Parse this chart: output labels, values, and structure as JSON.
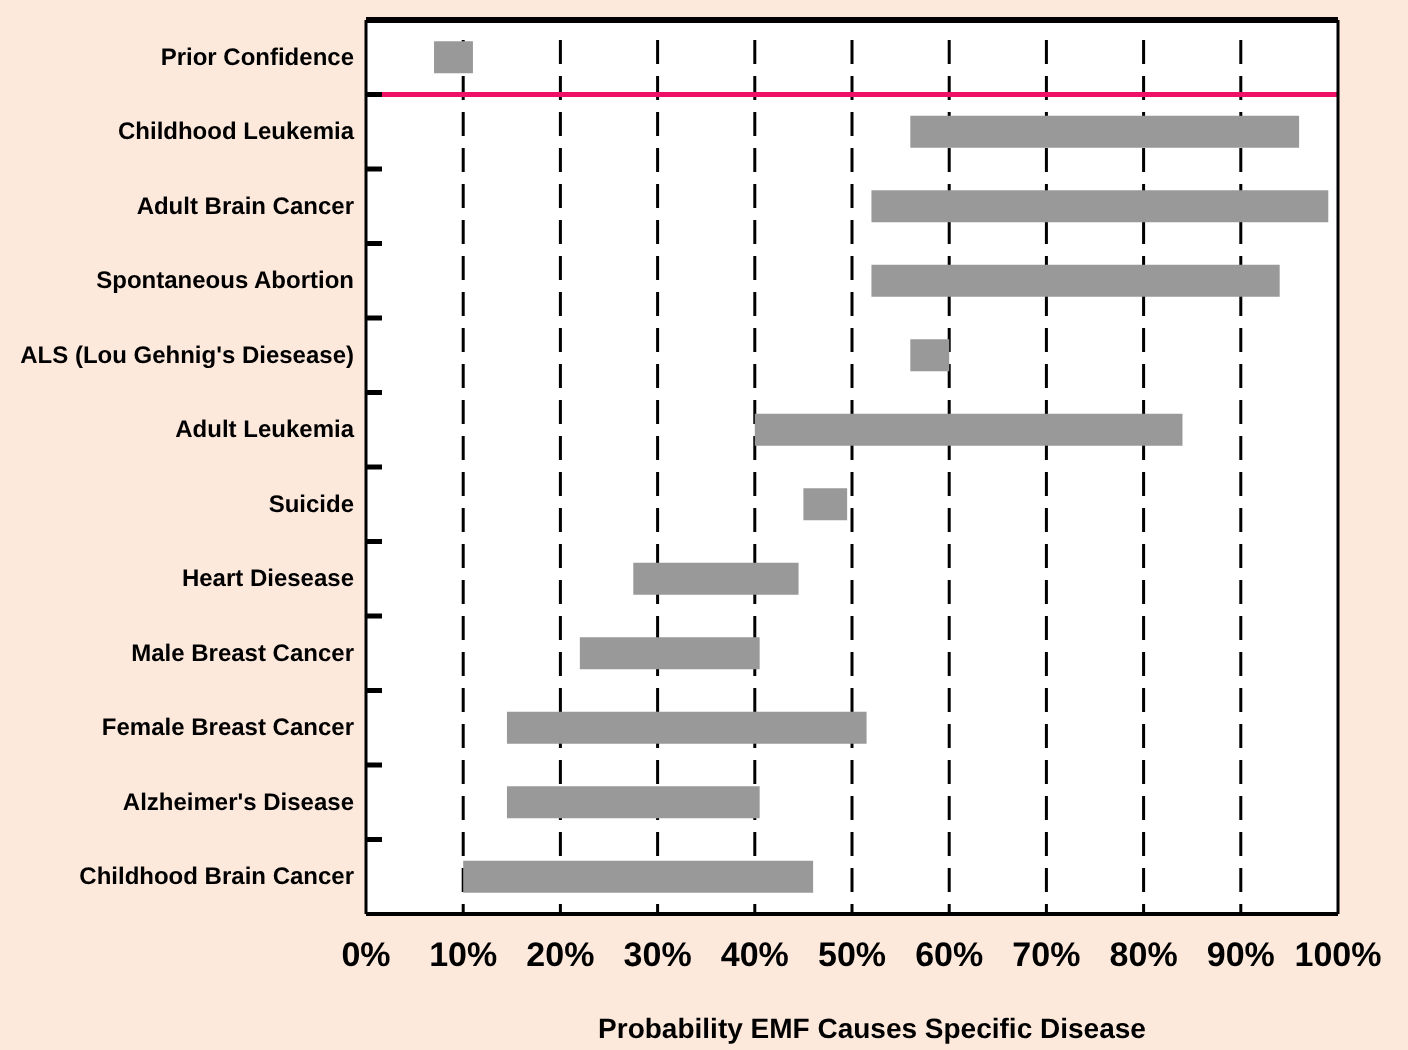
{
  "chart_data": {
    "type": "bar",
    "orientation": "horizontal",
    "xlabel": "Probability EMF Causes Specific Disease",
    "categories": [
      "Prior Confidence",
      "Childhood Leukemia",
      "Adult Brain Cancer",
      "Spontaneous Abortion",
      "ALS (Lou Gehnig's Diesease)",
      "Adult Leukemia",
      "Suicide",
      "Heart Diesease",
      "Male Breast Cancer",
      "Female Breast Cancer",
      "Alzheimer's Disease",
      "Childhood Brain Cancer"
    ],
    "base": [
      7,
      56,
      52,
      52,
      56,
      40,
      45,
      27.5,
      22,
      14.5,
      14.5,
      10
    ],
    "values": [
      4,
      40,
      47,
      42,
      4,
      44,
      4.5,
      17,
      18.5,
      37,
      26,
      36
    ],
    "color": "#999999",
    "xlim": [
      0,
      100
    ],
    "xticks": [
      {
        "value": 0,
        "label": "0%"
      },
      {
        "value": 10,
        "label": "10%"
      },
      {
        "value": 20,
        "label": "20%"
      },
      {
        "value": 30,
        "label": "30%"
      },
      {
        "value": 40,
        "label": "40%"
      },
      {
        "value": 50,
        "label": "50%"
      },
      {
        "value": 60,
        "label": "60%"
      },
      {
        "value": 70,
        "label": "70%"
      },
      {
        "value": 80,
        "label": "80%"
      },
      {
        "value": 90,
        "label": "90%"
      },
      {
        "value": 100,
        "label": "100%"
      }
    ],
    "grid": "x",
    "line_style": "dashed",
    "ref_lines": [
      {
        "axis": "y",
        "value": "Childhood Leukemia",
        "color": "#ee1166"
      }
    ]
  }
}
